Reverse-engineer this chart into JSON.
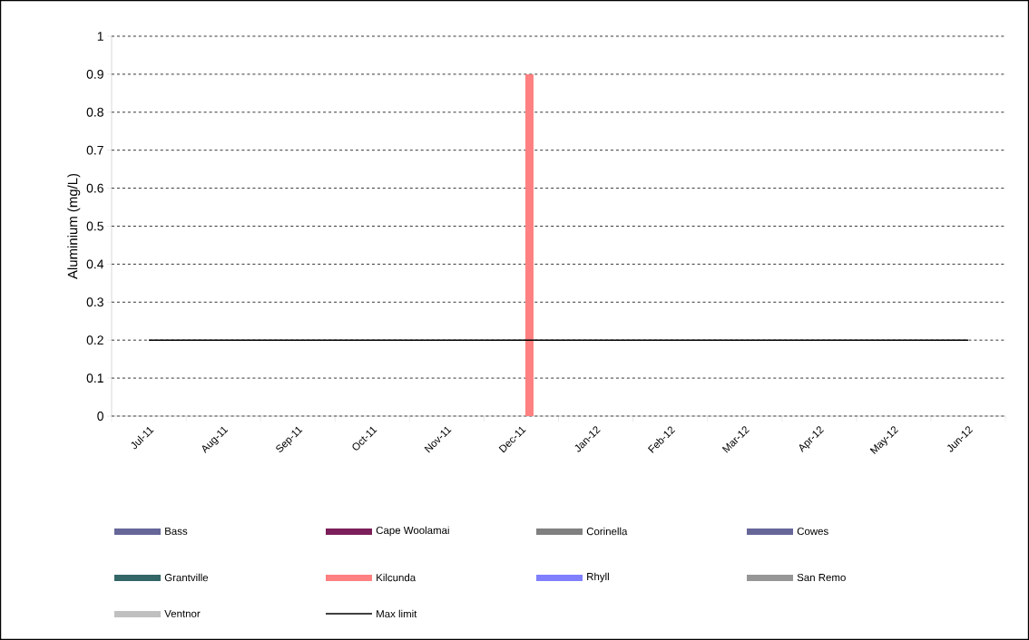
{
  "chart_data": {
    "type": "bar",
    "ylabel": "Aluminium (mg/L)",
    "categories": [
      "Jul-11",
      "Aug-11",
      "Sep-11",
      "Oct-11",
      "Nov-11",
      "Dec-11",
      "Jan-12",
      "Feb-12",
      "Mar-12",
      "Apr-12",
      "May-12",
      "Jun-12"
    ],
    "series": [
      {
        "name": "Bass",
        "color": "#666699",
        "values": [
          null,
          null,
          null,
          null,
          null,
          null,
          null,
          null,
          null,
          null,
          null,
          null
        ]
      },
      {
        "name": "Cape Woolamai",
        "color": "#7b1f5a",
        "values": [
          null,
          null,
          null,
          null,
          null,
          null,
          null,
          null,
          null,
          null,
          null,
          null
        ]
      },
      {
        "name": "Corinella",
        "color": "#808080",
        "values": [
          null,
          null,
          null,
          null,
          null,
          null,
          null,
          null,
          null,
          null,
          null,
          null
        ]
      },
      {
        "name": "Cowes",
        "color": "#666699",
        "values": [
          null,
          null,
          null,
          null,
          null,
          null,
          null,
          null,
          null,
          null,
          null,
          null
        ]
      },
      {
        "name": "Grantville",
        "color": "#336666",
        "values": [
          null,
          null,
          null,
          null,
          null,
          null,
          null,
          null,
          null,
          null,
          null,
          null
        ]
      },
      {
        "name": "Kilcunda",
        "color": "#ff8080",
        "values": [
          null,
          null,
          null,
          null,
          null,
          0.9,
          null,
          null,
          null,
          null,
          null,
          null
        ]
      },
      {
        "name": "Rhyll",
        "color": "#8080ff",
        "values": [
          null,
          null,
          null,
          null,
          null,
          null,
          null,
          null,
          null,
          null,
          null,
          null
        ]
      },
      {
        "name": "San Remo",
        "color": "#969696",
        "values": [
          null,
          null,
          null,
          null,
          null,
          null,
          null,
          null,
          null,
          null,
          null,
          null
        ]
      },
      {
        "name": "Ventnor",
        "color": "#c0c0c0",
        "values": [
          null,
          null,
          null,
          null,
          null,
          null,
          null,
          null,
          null,
          null,
          null,
          null
        ]
      },
      {
        "name": "Max limit",
        "type": "line",
        "color": "#000000",
        "values": [
          0.2,
          0.2,
          0.2,
          0.2,
          0.2,
          0.2,
          0.2,
          0.2,
          0.2,
          0.2,
          0.2,
          0.2
        ]
      }
    ],
    "ylim": [
      0,
      1
    ],
    "yticks": [
      0,
      0.1,
      0.2,
      0.3,
      0.4,
      0.5,
      0.6,
      0.7,
      0.8,
      0.9,
      1
    ],
    "grid": "y",
    "legend": "bottom"
  }
}
